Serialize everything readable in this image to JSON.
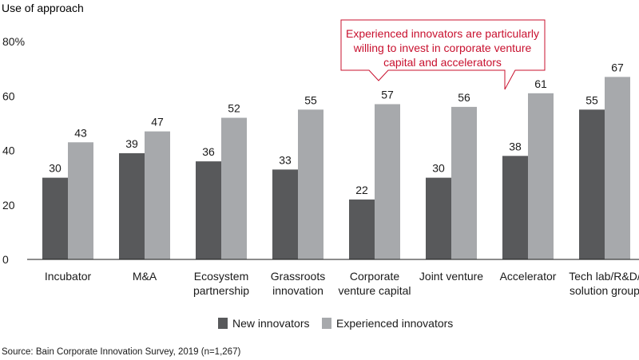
{
  "chart_data": {
    "type": "bar",
    "ylabel": "Use of approach",
    "ylim": [
      0,
      80
    ],
    "yticks": [
      {
        "value": 0,
        "label": "0"
      },
      {
        "value": 20,
        "label": "20"
      },
      {
        "value": 40,
        "label": "40"
      },
      {
        "value": 60,
        "label": "60"
      },
      {
        "value": 80,
        "label": "80%"
      }
    ],
    "categories": [
      [
        "Incubator"
      ],
      [
        "M&A"
      ],
      [
        "Ecosystem",
        "partnership"
      ],
      [
        "Grassroots",
        "innovation"
      ],
      [
        "Corporate",
        "venture capital"
      ],
      [
        "Joint venture"
      ],
      [
        "Accelerator"
      ],
      [
        "Tech lab/R&D/",
        "solution group"
      ]
    ],
    "series": [
      {
        "name": "New innovators",
        "color": "#58595b",
        "values": [
          30,
          39,
          36,
          33,
          22,
          30,
          38,
          55
        ]
      },
      {
        "name": "Experienced innovators",
        "color": "#a7a9ac",
        "values": [
          43,
          47,
          52,
          55,
          57,
          56,
          61,
          67
        ]
      }
    ],
    "grid": false,
    "legend_position": "bottom-center",
    "annotation": {
      "lines": [
        "Experienced innovators are particularly",
        "willing to invest in corporate venture",
        "capital and accelerators"
      ],
      "color": "#c8102e"
    },
    "source": "Source: Bain Corporate Innovation Survey, 2019 (n=1,267)"
  }
}
